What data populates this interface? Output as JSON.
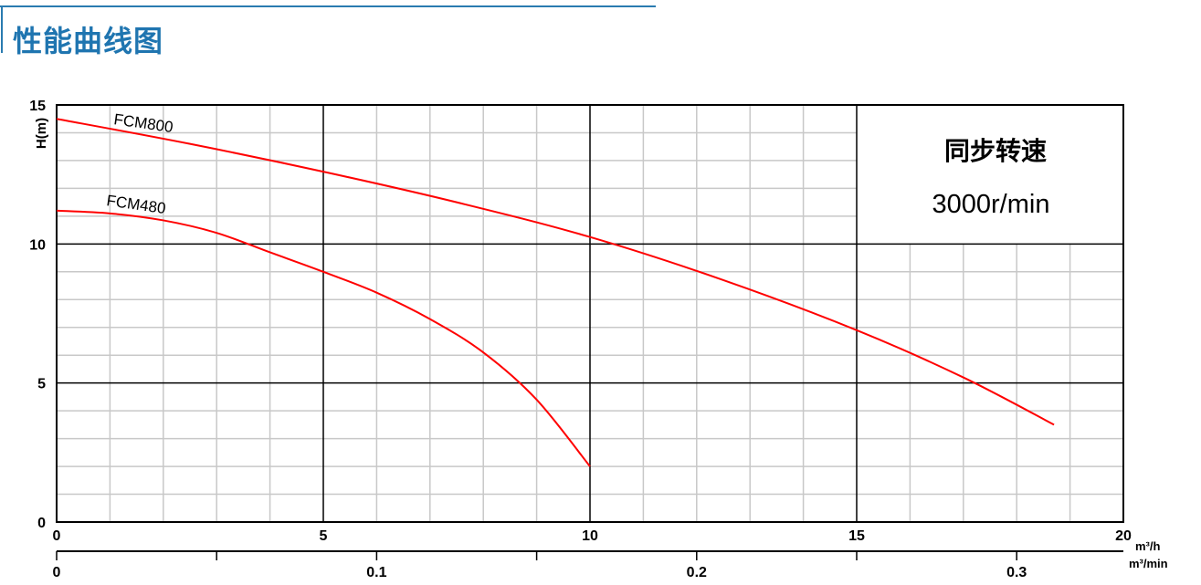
{
  "header": {
    "title": "性能曲线图",
    "accent_color": "#1f75b0"
  },
  "chart_data": {
    "type": "line",
    "title": "",
    "ylabel": "H(m)",
    "xlabel": "m³/h",
    "xlabel_secondary": "m³/min",
    "xlim": [
      0,
      20
    ],
    "ylim": [
      0,
      15
    ],
    "x_ticks": [
      "0",
      "5",
      "10",
      "15",
      "20"
    ],
    "y_ticks": [
      "0",
      "5",
      "10",
      "15"
    ],
    "x2_ticks": [
      "0",
      "0.1",
      "0.2",
      "0.3"
    ],
    "x2_tick_values": [
      0,
      0.1,
      0.2,
      0.3
    ],
    "grid": true,
    "annotation": {
      "line1": "同步转速",
      "line2": "3000r/min"
    },
    "series_color": "#ff0000",
    "series": [
      {
        "name": "FCM800",
        "x": [
          0,
          2.5,
          5,
          7.5,
          10,
          12.5,
          15,
          17,
          18.7
        ],
        "y": [
          14.5,
          13.6,
          12.6,
          11.5,
          10.25,
          8.7,
          6.9,
          5.2,
          3.5
        ]
      },
      {
        "name": "FCM480",
        "x": [
          0,
          1,
          2,
          3,
          4,
          5,
          6,
          7,
          8,
          9,
          10
        ],
        "y": [
          11.2,
          11.1,
          10.85,
          10.4,
          9.7,
          9.0,
          8.25,
          7.3,
          6.1,
          4.4,
          2.0
        ]
      }
    ]
  }
}
